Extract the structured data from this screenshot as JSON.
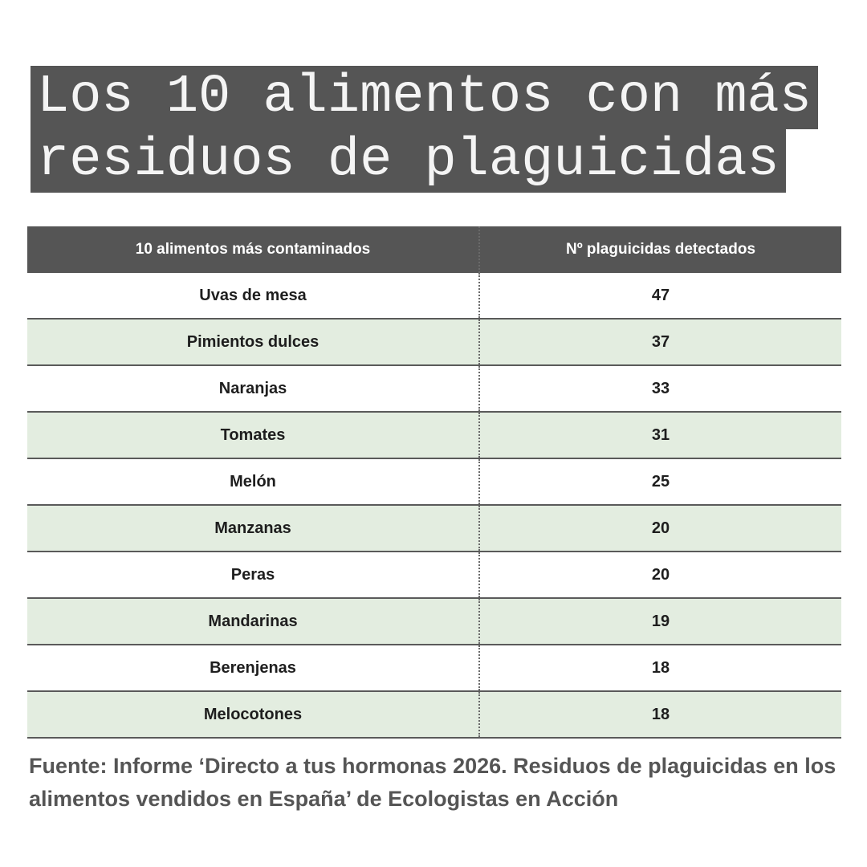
{
  "header": {
    "title_lines": [
      "Los 10 alimentos con más",
      "residuos de plaguicidas"
    ]
  },
  "table": {
    "columns": [
      "10 alimentos más contaminados",
      "Nº plaguicidas detectados"
    ],
    "rows": [
      [
        "Uvas de mesa",
        "47"
      ],
      [
        "Pimientos dulces",
        "37"
      ],
      [
        "Naranjas",
        "33"
      ],
      [
        "Tomates",
        "31"
      ],
      [
        "Melón",
        "25"
      ],
      [
        "Manzanas",
        "20"
      ],
      [
        "Peras",
        "20"
      ],
      [
        "Mandarinas",
        "19"
      ],
      [
        "Berenjenas",
        "18"
      ],
      [
        "Melocotones",
        "18"
      ]
    ]
  },
  "footer": {
    "source": "Fuente: Informe ‘Directo a tus hormonas 2026. Residuos de plaguicidas en los alimentos vendidos en España’ de Ecologistas en Acción"
  }
}
